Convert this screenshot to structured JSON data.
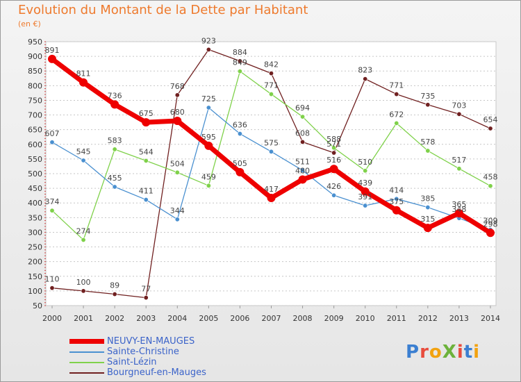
{
  "header": {
    "title": "Evolution du Montant de la Dette par Habitant",
    "unit": "(en €)"
  },
  "logo": {
    "text": "ProXiti",
    "colors": [
      "#3b7fd1",
      "#e84c3d",
      "#f2a20f",
      "#6cb23b",
      "#e84c3d",
      "#3b7fd1",
      "#f2a20f"
    ]
  },
  "chart_data": {
    "type": "line",
    "title": "Evolution du Montant de la Dette par Habitant",
    "ylabel": "(en €)",
    "xlabel": "",
    "x": [
      "2000",
      "2001",
      "2002",
      "2003",
      "2004",
      "2005",
      "2006",
      "2007",
      "2008",
      "2009",
      "2010",
      "2011",
      "2012",
      "2013",
      "2014"
    ],
    "ylim": [
      50,
      950
    ],
    "yticks": [
      50,
      100,
      150,
      200,
      250,
      300,
      350,
      400,
      450,
      500,
      550,
      600,
      650,
      700,
      750,
      800,
      850,
      900,
      950
    ],
    "grid": "horizontal dashed",
    "legend": "bottom-left",
    "series": [
      {
        "name": "NEUVY-EN-MAUGES",
        "color": "#ee0000",
        "values": [
          891,
          811,
          736,
          675,
          680,
          595,
          505,
          417,
          480,
          516,
          439,
          375,
          315,
          365,
          298
        ],
        "labels": [
          "891",
          "811",
          "736",
          "675",
          "680",
          "595",
          "505",
          "417",
          "480",
          "516",
          "439",
          "375",
          "315",
          "365",
          "298"
        ]
      },
      {
        "name": "Sainte-Christine",
        "color": "#4a90d0",
        "values": [
          607,
          545,
          455,
          411,
          344,
          725,
          636,
          575,
          511,
          426,
          391,
          414,
          385,
          348,
          309
        ],
        "labels": [
          "607",
          "545",
          "455",
          "411",
          "344",
          "725",
          "636",
          "575",
          "511",
          "426",
          "391",
          "414",
          "385",
          "348",
          "309"
        ]
      },
      {
        "name": "Saint-Lézin",
        "color": "#7fd14a",
        "values": [
          374,
          274,
          583,
          544,
          504,
          459,
          849,
          771,
          694,
          588,
          510,
          672,
          578,
          517,
          458
        ],
        "labels": [
          "374",
          "274",
          "583",
          "544",
          "504",
          "459",
          "849",
          "771",
          "694",
          "588",
          "510",
          "672",
          "578",
          "517",
          "458"
        ]
      },
      {
        "name": "Bourgneuf-en-Mauges",
        "color": "#702020",
        "values": [
          110,
          100,
          89,
          77,
          768,
          923,
          884,
          842,
          608,
          571,
          823,
          771,
          735,
          703,
          654
        ],
        "labels": [
          "110",
          "100",
          "89",
          "77",
          "768",
          "923",
          "884",
          "842",
          "608",
          "571",
          "823",
          "771",
          "735",
          "703",
          "654"
        ]
      }
    ]
  }
}
